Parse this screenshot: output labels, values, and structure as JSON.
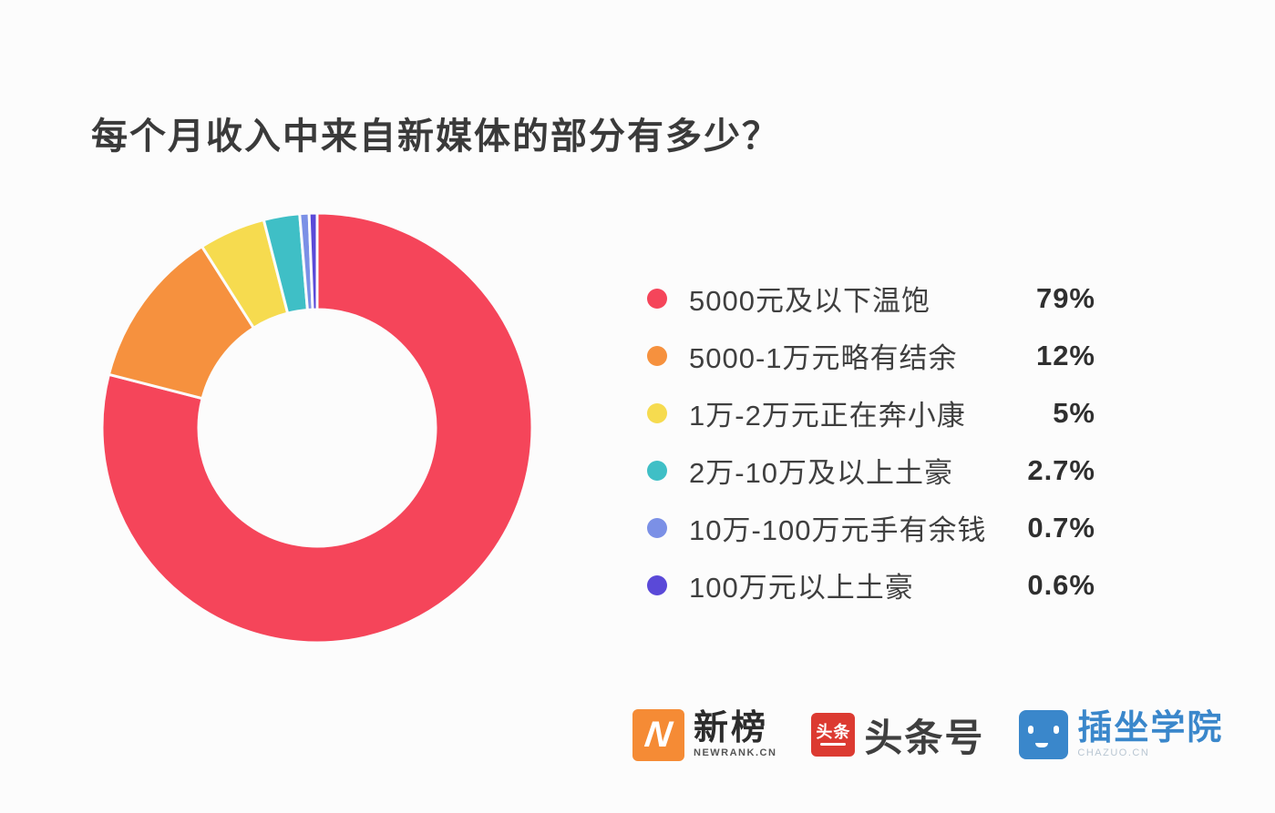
{
  "page": {
    "title": "每个月收入中来自新媒体的部分有多少？",
    "background": "#fcfcfc"
  },
  "chart_data": {
    "type": "pie",
    "subtype": "donut",
    "title": "每个月收入中来自新媒体的部分有多少？",
    "legend_position": "right",
    "direction": "clockwise",
    "start_angle_deg": 0,
    "inner_radius_ratio": 0.55,
    "categories": [
      "5000元及以下温饱",
      "5000-1万元略有结余",
      "1万-2万元正在奔小康",
      "2万-10万及以上土豪",
      "10万-100万元手有余钱",
      "100万元以上土豪"
    ],
    "values": [
      79,
      12,
      5,
      2.7,
      0.7,
      0.6
    ],
    "value_labels": [
      "79%",
      "12%",
      "5%",
      "2.7%",
      "0.7%",
      "0.6%"
    ],
    "colors": [
      "#F5455A",
      "#F6913E",
      "#F6DB4F",
      "#3FBFC6",
      "#7B90E6",
      "#5A49D8"
    ]
  },
  "footer": {
    "logos": {
      "newrank": {
        "icon_letter": "N",
        "zh": "新榜",
        "sub": "NEWRANK.CN",
        "color": "#F58B35"
      },
      "toutiao": {
        "icon_text": "头条",
        "zh": "头条号",
        "color": "#DC3A31"
      },
      "chazuo": {
        "zh": "插坐学院",
        "sub": "CHAZUO.CN",
        "color": "#3A87CB"
      }
    }
  }
}
